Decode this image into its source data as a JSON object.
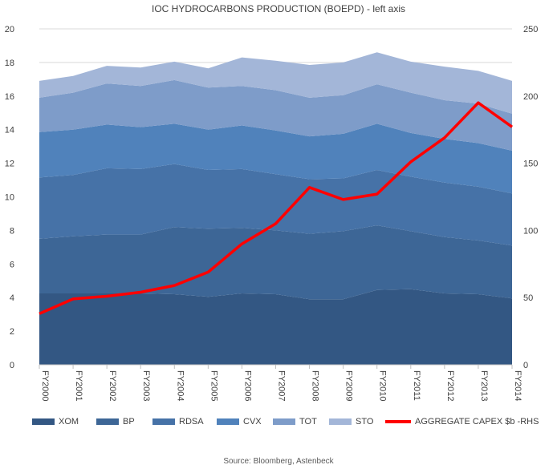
{
  "chart_data": {
    "type": "area",
    "stacked": true,
    "title": "IOC HYDROCARBONS PRODUCTION (BOEPD) - left axis",
    "categories": [
      "FY2000",
      "FY2001",
      "FY2002",
      "FY2003",
      "FY2004",
      "FY2005",
      "FY2006",
      "FY2007",
      "FY2008",
      "FY2009",
      "FY2010",
      "FY2011",
      "FY2012",
      "FY2013",
      "FY2014"
    ],
    "ylim_left": [
      0,
      20
    ],
    "yticks_left": [
      0,
      2,
      4,
      6,
      8,
      10,
      12,
      14,
      16,
      18,
      20
    ],
    "ylim_right": [
      0,
      250
    ],
    "yticks_right": [
      0,
      50,
      100,
      150,
      200,
      250
    ],
    "grid": true,
    "legend_position": "bottom",
    "series": [
      {
        "name": "XOM",
        "color": "#335783",
        "values": [
          4.25,
          4.25,
          4.25,
          4.25,
          4.2,
          4.05,
          4.25,
          4.2,
          3.9,
          3.9,
          4.45,
          4.5,
          4.25,
          4.2,
          3.95
        ]
      },
      {
        "name": "BP",
        "color": "#3d6696",
        "values": [
          3.25,
          3.4,
          3.5,
          3.5,
          4.0,
          4.05,
          3.9,
          3.8,
          3.9,
          4.05,
          3.85,
          3.45,
          3.35,
          3.2,
          3.15
        ]
      },
      {
        "name": "RDSA",
        "color": "#4672a7",
        "values": [
          3.65,
          3.65,
          3.95,
          3.9,
          3.75,
          3.5,
          3.5,
          3.35,
          3.25,
          3.15,
          3.3,
          3.25,
          3.25,
          3.2,
          3.1
        ]
      },
      {
        "name": "CVX",
        "color": "#5082bb",
        "values": [
          2.7,
          2.7,
          2.6,
          2.5,
          2.4,
          2.4,
          2.6,
          2.6,
          2.55,
          2.65,
          2.75,
          2.6,
          2.6,
          2.6,
          2.55
        ]
      },
      {
        "name": "TOT",
        "color": "#7e9cc9",
        "values": [
          2.05,
          2.2,
          2.45,
          2.45,
          2.6,
          2.5,
          2.35,
          2.4,
          2.3,
          2.3,
          2.35,
          2.4,
          2.3,
          2.35,
          2.2
        ]
      },
      {
        "name": "STO",
        "color": "#a3b6d8",
        "values": [
          1.0,
          1.0,
          1.05,
          1.1,
          1.1,
          1.15,
          1.7,
          1.75,
          1.95,
          1.95,
          1.9,
          1.85,
          2.0,
          1.95,
          1.95
        ]
      }
    ],
    "line_series": {
      "name": "AGGREGATE CAPEX $b -RHS",
      "color": "#ff0000",
      "axis": "right",
      "values": [
        38,
        49,
        51,
        54,
        59,
        69,
        90,
        105,
        132,
        123,
        127,
        151,
        169,
        195,
        177
      ]
    },
    "source": "Source: Bloomberg, Astenbeck"
  }
}
